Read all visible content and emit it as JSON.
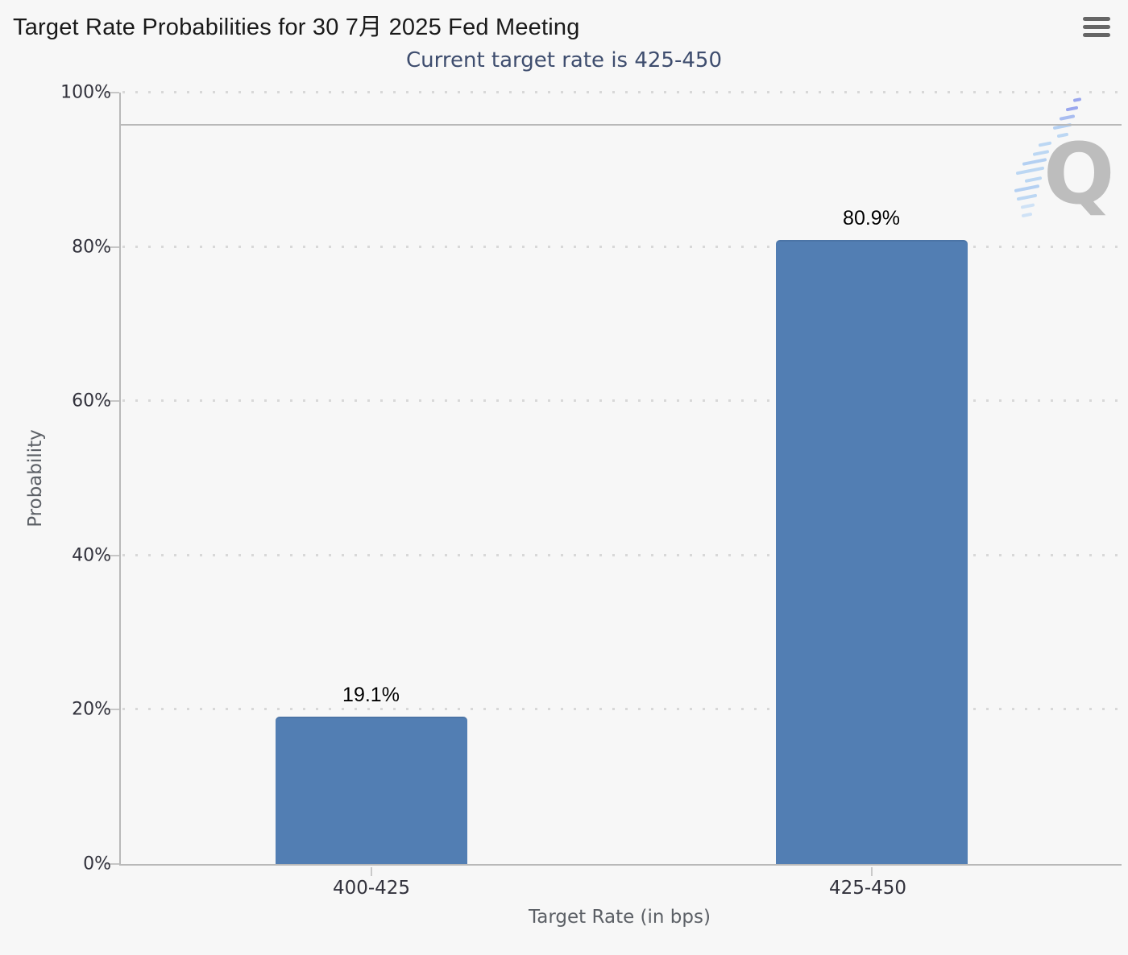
{
  "header": {
    "title": "Target Rate Probabilities for 30 7月 2025 Fed Meeting",
    "subtitle": "Current target rate is 425-450"
  },
  "menu": {
    "icon": "hamburger-menu-icon"
  },
  "chart_data": {
    "type": "bar",
    "title": "Target Rate Probabilities for 30 7月 2025 Fed Meeting",
    "subtitle": "Current target rate is 425-450",
    "categories": [
      "400-425",
      "425-450"
    ],
    "values": [
      19.1,
      80.9
    ],
    "data_labels": [
      "19.1%",
      "80.9%"
    ],
    "xlabel": "Target Rate (in bps)",
    "ylabel": "Probability",
    "ylim": [
      0,
      100
    ],
    "y_ticks": [
      "0%",
      "20%",
      "40%",
      "60%",
      "80%",
      "100%"
    ],
    "grid": "horizontal dotted lines at 20% intervals",
    "legend": "none",
    "plotline_y": 95.8,
    "bar_color": "#527EB3"
  },
  "watermark": {
    "letter": "Q"
  },
  "colors": {
    "background": "#f7f7f7",
    "bar": "#527EB3",
    "bar_top": "#4b74a6",
    "title": "#1a1a1a",
    "subtitle": "#3e4d6e",
    "axis_line": "#b9b9b9",
    "grid_dot": "#d8d8d8",
    "axis_label": "#32323c",
    "axis_title": "#5c6066",
    "menu_icon": "#666666",
    "watermark_q": "#b4b4b4",
    "watermark_dash": "#bcd7f3"
  }
}
